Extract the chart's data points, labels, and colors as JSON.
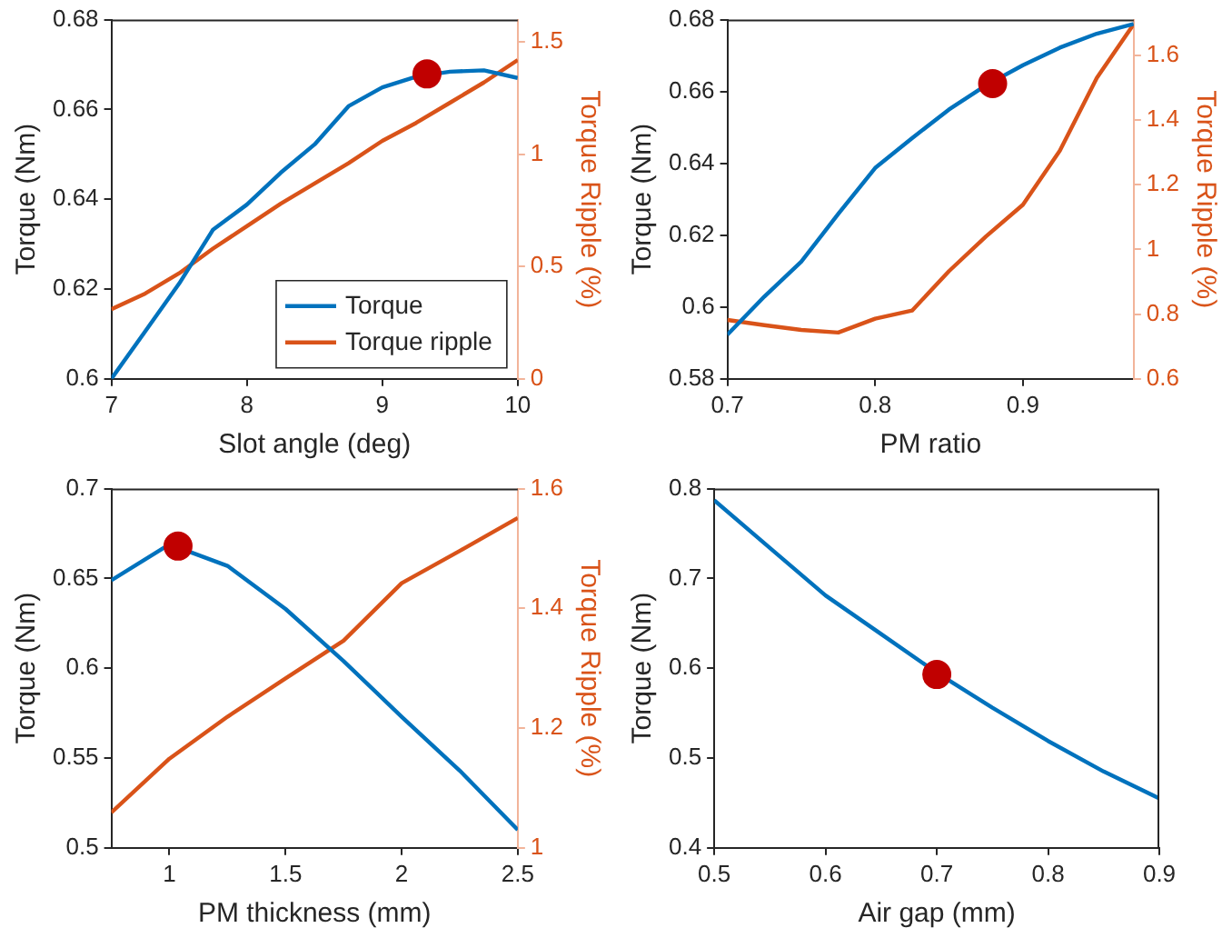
{
  "chart_data": [
    {
      "type": "line",
      "xlabel": "Slot angle (deg)",
      "ylabel": "Torque (Nm)",
      "y2label": "Torque Ripple (%)",
      "x": [
        7,
        7.25,
        7.5,
        7.75,
        8,
        8.25,
        8.5,
        8.75,
        9,
        9.25,
        9.5,
        9.75,
        10
      ],
      "xlim": [
        7,
        10
      ],
      "xticks": [
        7,
        8,
        9,
        10
      ],
      "ylim": [
        0.6,
        0.68
      ],
      "yticks": [
        0.6,
        0.62,
        0.64,
        0.66,
        0.68
      ],
      "y2lim": [
        0,
        1.6
      ],
      "y2ticks": [
        0,
        0.5,
        1,
        1.5
      ],
      "grid": false,
      "legend": "bottom right",
      "series": [
        {
          "name": "Torque",
          "type": "line",
          "color": "#0072bd",
          "values": [
            0.6,
            0.6106,
            0.6212,
            0.6332,
            0.6388,
            0.6459,
            0.6522,
            0.6607,
            0.6649,
            0.6673,
            0.6684,
            0.6687,
            0.667
          ]
        },
        {
          "name": "Torque ripple",
          "type": "line",
          "axis": "y2",
          "color": "#d95319",
          "values": [
            0.31,
            0.38,
            0.47,
            0.58,
            0.68,
            0.78,
            0.87,
            0.96,
            1.06,
            1.14,
            1.23,
            1.32,
            1.42
          ]
        },
        {
          "type": "scatter",
          "marker": "circle",
          "color": "#c00000",
          "x": [
            9.33
          ],
          "values": [
            0.6679
          ]
        }
      ]
    },
    {
      "type": "line",
      "xlabel": "PM ratio",
      "ylabel": "Torque (Nm)",
      "y2label": "Torque Ripple (%)",
      "x": [
        0.7,
        0.725,
        0.75,
        0.775,
        0.8,
        0.825,
        0.85,
        0.875,
        0.9,
        0.925,
        0.95,
        0.975
      ],
      "xlim": [
        0.7,
        0.975
      ],
      "xticks": [
        0.7,
        0.8,
        0.9
      ],
      "ylim": [
        0.58,
        0.68
      ],
      "yticks": [
        0.58,
        0.6,
        0.62,
        0.64,
        0.66,
        0.68
      ],
      "y2lim": [
        0.6,
        1.71
      ],
      "y2ticks": [
        0.6,
        0.8,
        1,
        1.2,
        1.4,
        1.6
      ],
      "grid": false,
      "series": [
        {
          "type": "line",
          "color": "#0072bd",
          "values": [
            0.5923,
            0.6029,
            0.6126,
            0.6259,
            0.6387,
            0.647,
            0.655,
            0.6617,
            0.6673,
            0.6722,
            0.6761,
            0.6788
          ]
        },
        {
          "type": "line",
          "axis": "y2",
          "color": "#d95319",
          "values": [
            0.782,
            0.766,
            0.751,
            0.743,
            0.786,
            0.811,
            0.933,
            1.04,
            1.138,
            1.305,
            1.53,
            1.696
          ]
        },
        {
          "type": "scatter",
          "marker": "circle",
          "color": "#c00000",
          "x": [
            0.8795
          ],
          "values": [
            0.6622
          ]
        }
      ]
    },
    {
      "type": "line",
      "xlabel": "PM thickness (mm)",
      "ylabel": "Torque (Nm)",
      "y2label": "Torque Ripple (%)",
      "x": [
        0.75,
        1,
        1.25,
        1.5,
        1.75,
        2,
        2.25,
        2.5
      ],
      "xlim": [
        0.75,
        2.5
      ],
      "xticks": [
        1,
        1.5,
        2,
        2.5
      ],
      "ylim": [
        0.5,
        0.7
      ],
      "yticks": [
        0.5,
        0.55,
        0.6,
        0.65,
        0.7
      ],
      "y2lim": [
        1,
        1.6
      ],
      "y2ticks": [
        1,
        1.2,
        1.4,
        1.6
      ],
      "grid": false,
      "series": [
        {
          "type": "line",
          "color": "#0072bd",
          "values": [
            0.649,
            0.669,
            0.657,
            0.633,
            0.604,
            0.573,
            0.543,
            0.51
          ]
        },
        {
          "type": "line",
          "axis": "y2",
          "color": "#d95319",
          "values": [
            1.059,
            1.149,
            1.219,
            1.283,
            1.346,
            1.442,
            1.496,
            1.551
          ]
        },
        {
          "type": "scatter",
          "marker": "circle",
          "color": "#c00000",
          "x": [
            1.037
          ],
          "values": [
            0.668
          ]
        }
      ]
    },
    {
      "type": "line",
      "xlabel": "Air gap (mm)",
      "ylabel": "Torque (Nm)",
      "x": [
        0.5,
        0.55,
        0.6,
        0.65,
        0.7,
        0.75,
        0.8,
        0.85,
        0.9
      ],
      "xlim": [
        0.5,
        0.9
      ],
      "xticks": [
        0.5,
        0.6,
        0.7,
        0.8,
        0.9
      ],
      "ylim": [
        0.4,
        0.8
      ],
      "yticks": [
        0.4,
        0.5,
        0.6,
        0.7,
        0.8
      ],
      "grid": false,
      "series": [
        {
          "type": "line",
          "color": "#0072bd",
          "values": [
            0.787,
            0.734,
            0.681,
            0.638,
            0.595,
            0.556,
            0.519,
            0.485,
            0.455
          ]
        },
        {
          "type": "scatter",
          "marker": "circle",
          "color": "#c00000",
          "x": [
            0.7
          ],
          "values": [
            0.593
          ]
        }
      ]
    }
  ]
}
